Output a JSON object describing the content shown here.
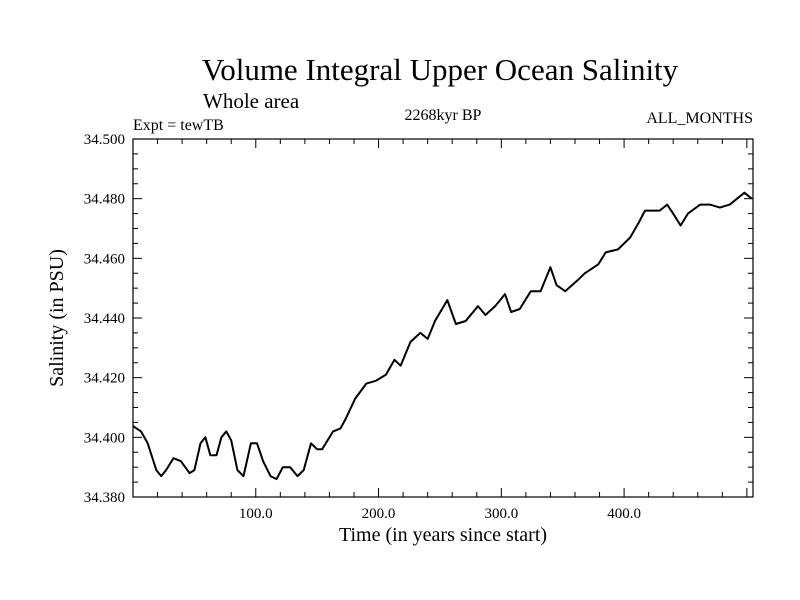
{
  "chart_data": {
    "type": "line",
    "title": "Volume Integral Upper Ocean Salinity",
    "subtitle": "Whole area",
    "left_label": "Expt = tewTB",
    "center_label": "2268kyr BP",
    "right_label": "ALL_MONTHS",
    "xlabel": "Time (in years since start)",
    "ylabel": "Salinity (in PSU)",
    "xlim": [
      0,
      505
    ],
    "ylim": [
      34.38,
      34.5
    ],
    "x_ticks": [
      100,
      200,
      300,
      400
    ],
    "x_tick_labels": [
      "100.0",
      "200.0",
      "300.0",
      "400.0"
    ],
    "y_ticks": [
      34.38,
      34.4,
      34.42,
      34.44,
      34.46,
      34.48,
      34.5
    ],
    "y_tick_labels": [
      "34.380",
      "34.400",
      "34.420",
      "34.440",
      "34.460",
      "34.480",
      "34.500"
    ],
    "grid": false,
    "series": [
      {
        "name": "salinity",
        "color": "#000000",
        "x": [
          0,
          6.5,
          12,
          19,
          23,
          27,
          33,
          39,
          46,
          50,
          55,
          59,
          63,
          68,
          72,
          76,
          80,
          85,
          90,
          96,
          101,
          106,
          112,
          117,
          122,
          128,
          134,
          139,
          145,
          150,
          154,
          163,
          169,
          173,
          181,
          190,
          198,
          206,
          213,
          218,
          226,
          234,
          240,
          246,
          256,
          263,
          271,
          281,
          287,
          295,
          303,
          308,
          315,
          324,
          332,
          340,
          345,
          352,
          363,
          368,
          379,
          385,
          395,
          405,
          412,
          417,
          429,
          435,
          440,
          446,
          452,
          462,
          470,
          478,
          486,
          492,
          498,
          504
        ],
        "values": [
          34.4038,
          34.402,
          34.398,
          34.389,
          34.387,
          34.389,
          34.393,
          34.392,
          34.388,
          34.389,
          34.398,
          34.4,
          34.394,
          34.394,
          34.4,
          34.402,
          34.399,
          34.389,
          34.387,
          34.398,
          34.398,
          34.392,
          34.387,
          34.386,
          34.39,
          34.39,
          34.387,
          34.389,
          34.398,
          34.396,
          34.396,
          34.402,
          34.403,
          34.406,
          34.413,
          34.418,
          34.419,
          34.421,
          34.426,
          34.424,
          34.432,
          34.435,
          34.433,
          34.439,
          34.446,
          34.438,
          34.439,
          34.444,
          34.441,
          34.444,
          34.448,
          34.442,
          34.443,
          34.449,
          34.449,
          34.457,
          34.451,
          34.449,
          34.453,
          34.455,
          34.458,
          34.462,
          34.463,
          34.467,
          34.472,
          34.476,
          34.476,
          34.478,
          34.475,
          34.471,
          34.475,
          34.478,
          34.478,
          34.477,
          34.478,
          34.48,
          34.482,
          34.48
        ]
      }
    ]
  }
}
